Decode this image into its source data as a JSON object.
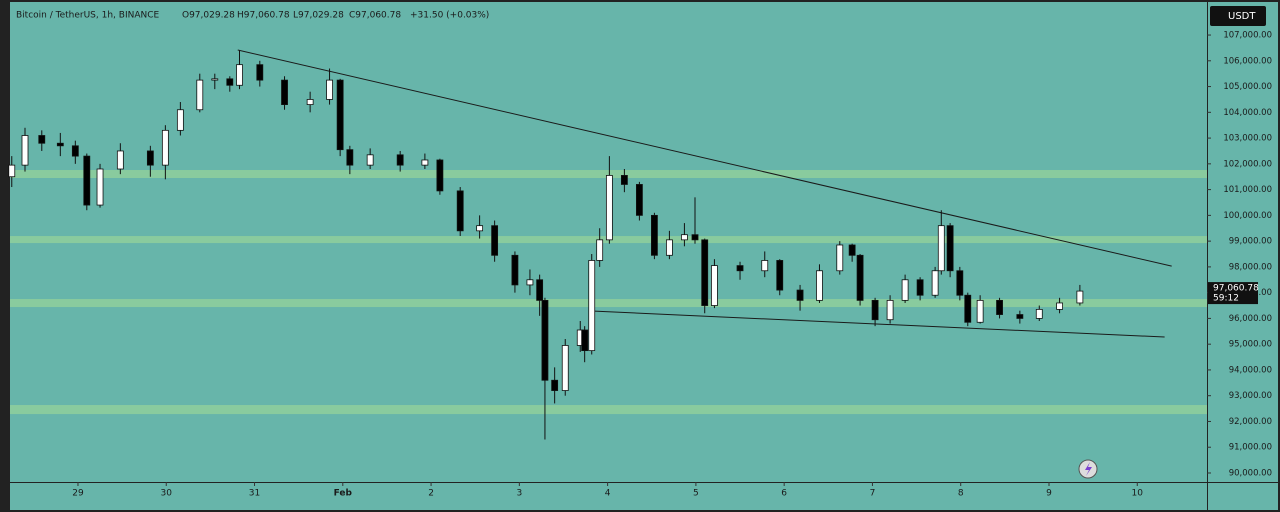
{
  "chart_data": {
    "type": "candlestick",
    "title": "Bitcoin / TetherUS, 1h, BINANCE",
    "ohlc_legend": [
      "O97,029.28",
      "H97,060.78",
      "L97,029.28",
      "C97,060.78",
      "+31.50 (+0.03%)"
    ],
    "currency_button": "USDT",
    "last_price_label": "97,060.78",
    "countdown": "59:12",
    "background": "#67b5aa",
    "up_color": "#ffffff",
    "down_color": "#000000",
    "zone_color": "#8fcf9c",
    "line_color": "#1a1a1a",
    "x": [
      -0.75,
      -0.6,
      -0.41,
      -0.2,
      -0.03,
      0.1,
      0.25,
      0.48,
      0.82,
      0.99,
      1.16,
      1.38,
      1.55,
      1.72,
      1.83,
      2.06,
      2.34,
      2.63,
      2.85,
      2.97,
      3.08,
      3.31,
      3.65,
      3.93,
      4.1,
      4.33,
      4.55,
      4.72,
      4.95,
      5.12,
      5.23,
      5.29,
      5.4,
      5.52,
      5.69,
      5.74,
      5.82,
      5.91,
      6.02,
      6.19,
      6.36,
      6.53,
      6.7,
      6.87,
      6.99,
      7.1,
      7.21,
      7.5,
      7.78,
      7.95,
      8.18,
      8.4,
      8.63,
      8.77,
      8.86,
      9.03,
      9.2,
      9.37,
      9.54,
      9.71,
      9.78,
      9.88,
      9.99,
      10.08,
      10.22,
      10.44,
      10.67,
      10.89,
      11.12,
      11.35
    ],
    "open": [
      101500,
      101950,
      103100,
      102800,
      102700,
      102300,
      100400,
      101800,
      102500,
      101950,
      103300,
      104100,
      105250,
      105300,
      105050,
      105850,
      105250,
      104300,
      104500,
      105250,
      102550,
      101950,
      102350,
      101950,
      102150,
      100950,
      99400,
      99600,
      98450,
      97300,
      97500,
      96700,
      93600,
      93200,
      94950,
      95550,
      94750,
      98250,
      99050,
      101550,
      101200,
      100000,
      98450,
      99050,
      99250,
      99050,
      96500,
      98050,
      97850,
      98250,
      97100,
      96700,
      97850,
      98850,
      98450,
      96700,
      95950,
      96700,
      97500,
      96900,
      97850,
      99600,
      97850,
      96900,
      95850,
      96700,
      96150,
      96000,
      96350,
      96600
    ],
    "high": [
      102300,
      103400,
      103300,
      103200,
      102900,
      102400,
      102000,
      102800,
      102700,
      103500,
      104400,
      105500,
      105500,
      105400,
      106400,
      106000,
      105400,
      104800,
      105700,
      105300,
      102700,
      102600,
      102500,
      102400,
      102200,
      101100,
      100000,
      99800,
      98600,
      97900,
      97700,
      96800,
      94100,
      95200,
      95900,
      95700,
      98500,
      99500,
      102300,
      101800,
      101300,
      100100,
      99400,
      99700,
      100700,
      99100,
      98300,
      98200,
      98600,
      98300,
      97300,
      98100,
      99000,
      98900,
      98500,
      96800,
      96900,
      97700,
      97600,
      98000,
      100200,
      99700,
      98000,
      97000,
      96900,
      96800,
      96300,
      96500,
      96800,
      97300
    ],
    "low": [
      101100,
      101700,
      102500,
      102300,
      102000,
      100200,
      100300,
      101600,
      101500,
      101400,
      103100,
      104000,
      104900,
      104800,
      104900,
      105000,
      104100,
      104000,
      104300,
      102300,
      101600,
      101800,
      101700,
      101800,
      100800,
      99200,
      99100,
      98200,
      97000,
      96900,
      96100,
      91300,
      92700,
      93000,
      94700,
      94300,
      94600,
      98000,
      98900,
      100900,
      99800,
      98300,
      98300,
      98800,
      98900,
      96200,
      96400,
      97500,
      97600,
      96900,
      96300,
      96600,
      97700,
      98200,
      96500,
      95700,
      95800,
      96600,
      96700,
      96800,
      97700,
      97600,
      96700,
      95700,
      95800,
      96000,
      95800,
      95900,
      96200,
      96500
    ],
    "close": [
      101950,
      103100,
      102800,
      102700,
      102300,
      100400,
      101800,
      102500,
      101950,
      103300,
      104100,
      105250,
      105300,
      105050,
      105850,
      105250,
      104300,
      104500,
      105250,
      102550,
      101950,
      102350,
      101950,
      102150,
      100950,
      99400,
      99600,
      98450,
      97300,
      97500,
      96700,
      93600,
      93200,
      94950,
      95550,
      94750,
      98250,
      99050,
      101550,
      101200,
      100000,
      98450,
      99050,
      99250,
      99050,
      96500,
      98050,
      97850,
      98250,
      97100,
      96700,
      97850,
      98850,
      98450,
      96700,
      95950,
      96700,
      97500,
      96900,
      97850,
      99600,
      97850,
      96900,
      95850,
      96700,
      96150,
      96000,
      96350,
      96600,
      97060.78
    ],
    "xlim": [
      -0.77,
      12.79
    ],
    "xticks": [
      {
        "value": 0,
        "label": "29"
      },
      {
        "value": 1,
        "label": "30"
      },
      {
        "value": 2,
        "label": "31"
      },
      {
        "value": 3,
        "label": "Feb"
      },
      {
        "value": 4,
        "label": "2"
      },
      {
        "value": 5,
        "label": "3"
      },
      {
        "value": 6,
        "label": "4"
      },
      {
        "value": 7,
        "label": "5"
      },
      {
        "value": 8,
        "label": "6"
      },
      {
        "value": 9,
        "label": "7"
      },
      {
        "value": 10,
        "label": "8"
      },
      {
        "value": 11,
        "label": "9"
      },
      {
        "value": 12,
        "label": "10"
      }
    ],
    "ylim": [
      89650,
      108360
    ],
    "yticks": [
      {
        "value": 90000,
        "label": "90,000.00"
      },
      {
        "value": 91000,
        "label": "91,000.00"
      },
      {
        "value": 92000,
        "label": "92,000.00"
      },
      {
        "value": 93000,
        "label": "93,000.00"
      },
      {
        "value": 94000,
        "label": "94,000.00"
      },
      {
        "value": 95000,
        "label": "95,000.00"
      },
      {
        "value": 96000,
        "label": "96,000.00"
      },
      {
        "value": 97000,
        "label": "97,000.00"
      },
      {
        "value": 98000,
        "label": "98,000.00"
      },
      {
        "value": 99000,
        "label": "99,000.00"
      },
      {
        "value": 100000,
        "label": "100,000.00"
      },
      {
        "value": 101000,
        "label": "101,000.00"
      },
      {
        "value": 102000,
        "label": "102,000.00"
      },
      {
        "value": 103000,
        "label": "103,000.00"
      },
      {
        "value": 104000,
        "label": "104,000.00"
      },
      {
        "value": 105000,
        "label": "105,000.00"
      },
      {
        "value": 106000,
        "label": "106,000.00"
      },
      {
        "value": 107000,
        "label": "107,000.00"
      }
    ],
    "zones": [
      {
        "from": 101450,
        "to": 101760
      },
      {
        "from": 98925,
        "to": 99197
      },
      {
        "from": 96441,
        "to": 96752
      },
      {
        "from": 92287,
        "to": 92637
      }
    ],
    "trendlines": [
      {
        "x": [
          1.81,
          12.39
        ],
        "y": [
          106420,
          98030
        ]
      },
      {
        "x": [
          5.82,
          12.31
        ],
        "y": [
          96286,
          95277
        ]
      }
    ]
  }
}
